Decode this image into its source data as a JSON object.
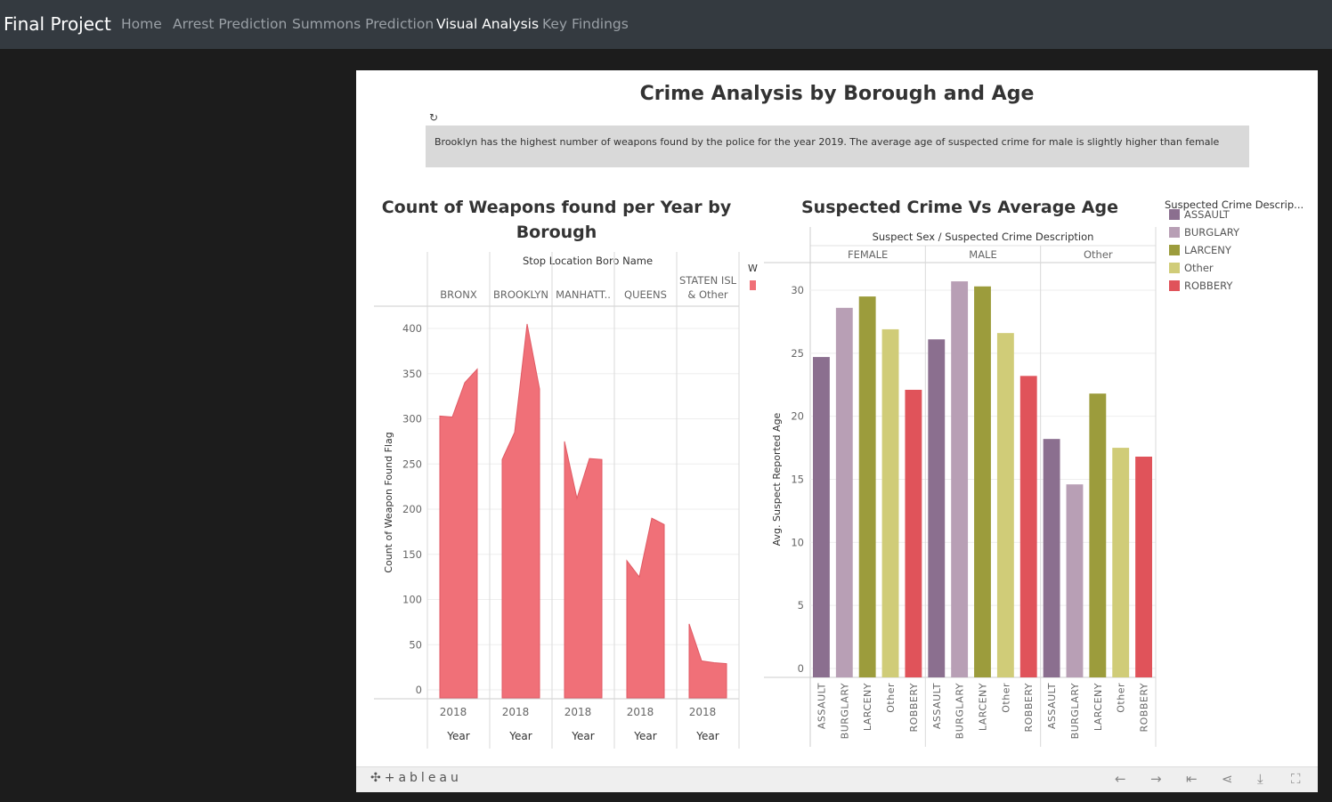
{
  "nav": {
    "brand": "Final Project",
    "links": [
      "Home",
      "Arrest Prediction",
      "Summons Prediction",
      "Visual Analysis",
      "Key Findings"
    ],
    "active_index": 3
  },
  "dashboard": {
    "title": "Crime Analysis by Borough and Age",
    "note": "Brooklyn has the highest number of weapons found by the police for the year 2019. The average age of suspected crime for male is slightly higher than female",
    "refresh_icon": "refresh-icon"
  },
  "toolbar": {
    "logo": "+ableau",
    "icons": [
      "undo-icon",
      "redo-icon",
      "revert-icon",
      "share-icon",
      "download-icon",
      "fullscreen-icon"
    ]
  },
  "chart_data": [
    {
      "type": "area",
      "title": "Count of Weapons found per Year by Borough",
      "column_header": "Stop Location Boro Name",
      "panels": [
        "BRONX",
        "BROOKLYN",
        "MANHATT..",
        "QUEENS",
        "STATEN ISL & Other"
      ],
      "x_tick": "2018",
      "xlabel": "Year",
      "ylabel": "Count of Weapon Found Flag",
      "ylim": [
        0,
        400
      ],
      "yticks": [
        0,
        50,
        100,
        150,
        200,
        250,
        300,
        350,
        400
      ],
      "color": "#f07078",
      "legend_fragment": "W",
      "series": [
        {
          "panel": "BRONX",
          "values": [
            303,
            302,
            340,
            355
          ]
        },
        {
          "panel": "BROOKLYN",
          "values": [
            255,
            285,
            405,
            333
          ]
        },
        {
          "panel": "MANHATT..",
          "values": [
            275,
            212,
            256,
            255
          ]
        },
        {
          "panel": "QUEENS",
          "values": [
            143,
            125,
            190,
            183
          ]
        },
        {
          "panel": "STATEN ISL & Other",
          "values": [
            73,
            32,
            30,
            29
          ]
        }
      ]
    },
    {
      "type": "bar",
      "title": "Suspected Crime Vs Average Age",
      "column_header": "Suspect Sex / Suspected Crime Description",
      "groups": [
        "FEMALE",
        "MALE",
        "Other"
      ],
      "categories": [
        "ASSAULT",
        "BURGLARY",
        "LARCENY",
        "Other",
        "ROBBERY"
      ],
      "ylabel": "Avg. Suspect Reported Age",
      "ylim": [
        0,
        30
      ],
      "yticks": [
        0,
        5,
        10,
        15,
        20,
        25,
        30
      ],
      "series": [
        {
          "group": "FEMALE",
          "values": [
            24.7,
            28.6,
            29.5,
            26.9,
            22.1
          ]
        },
        {
          "group": "MALE",
          "values": [
            26.1,
            30.7,
            30.3,
            26.6,
            23.2
          ]
        },
        {
          "group": "Other",
          "values": [
            18.2,
            14.6,
            21.8,
            17.5,
            16.8
          ]
        }
      ],
      "legend": {
        "title": "Suspected Crime Descrip...",
        "position": "right",
        "items": [
          {
            "label": "ASSAULT",
            "color": "#8b6f8f"
          },
          {
            "label": "BURGLARY",
            "color": "#b89fb5"
          },
          {
            "label": "LARCENY",
            "color": "#9c9c3c"
          },
          {
            "label": "Other",
            "color": "#d0cc78"
          },
          {
            "label": "ROBBERY",
            "color": "#e0535a"
          }
        ]
      }
    }
  ]
}
